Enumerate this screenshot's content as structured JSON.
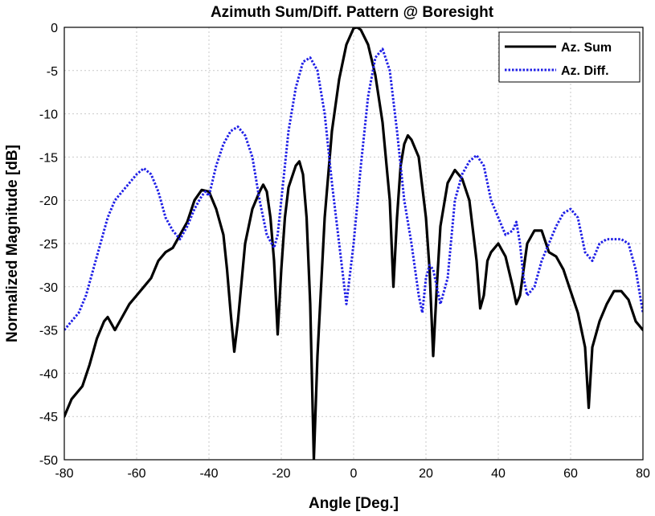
{
  "chart_data": {
    "type": "line",
    "title": "Azimuth Sum/Diff. Pattern @ Boresight",
    "xlabel": "Angle [Deg.]",
    "ylabel": "Normalized Magnitude [dB]",
    "xlim": [
      -80,
      80
    ],
    "ylim": [
      -50,
      0
    ],
    "xticks": [
      -80,
      -60,
      -40,
      -20,
      0,
      20,
      40,
      60,
      80
    ],
    "yticks": [
      0,
      -5,
      -10,
      -15,
      -20,
      -25,
      -30,
      -35,
      -40,
      -45,
      -50
    ],
    "grid": true,
    "legend": "top-right",
    "series": [
      {
        "name": "Az. Sum",
        "color": "#000000",
        "style": "solid",
        "x": [
          -80,
          -78,
          -75,
          -73,
          -71,
          -69,
          -68,
          -66,
          -64,
          -62,
          -60,
          -58,
          -56,
          -54,
          -52,
          -50,
          -48,
          -46,
          -44,
          -42,
          -40,
          -38,
          -36,
          -35,
          -34,
          -33,
          -32,
          -30,
          -28,
          -26,
          -25,
          -24,
          -23,
          -22,
          -21,
          -20,
          -19,
          -18,
          -16,
          -15,
          -14,
          -13,
          -12,
          -11,
          -10,
          -8,
          -6,
          -4,
          -2,
          0,
          1,
          2,
          4,
          6,
          8,
          10,
          11,
          12,
          13,
          14,
          15,
          16,
          18,
          20,
          21,
          22,
          23,
          24,
          26,
          28,
          30,
          32,
          34,
          35,
          36,
          37,
          38,
          40,
          42,
          44,
          45,
          46,
          47,
          48,
          50,
          52,
          54,
          56,
          58,
          60,
          62,
          64,
          65,
          66,
          68,
          70,
          72,
          74,
          76,
          78,
          80
        ],
        "values": [
          -45,
          -43,
          -41.5,
          -39,
          -36,
          -34,
          -33.5,
          -35,
          -33.5,
          -32,
          -31,
          -30,
          -29,
          -27,
          -26,
          -25.5,
          -24,
          -22.5,
          -20,
          -18.8,
          -19,
          -21,
          -24,
          -28,
          -33,
          -37.5,
          -34,
          -25,
          -21,
          -19,
          -18.2,
          -19,
          -22,
          -27,
          -35.5,
          -28,
          -22,
          -18.5,
          -16,
          -15.5,
          -17,
          -22,
          -32,
          -50,
          -38,
          -22,
          -12,
          -6,
          -2,
          -0.1,
          0,
          -0.3,
          -2,
          -5.5,
          -11,
          -20,
          -30,
          -22,
          -16,
          -13.5,
          -12.5,
          -13,
          -15,
          -22,
          -28,
          -38,
          -30,
          -23,
          -18,
          -16.5,
          -17.5,
          -20,
          -27,
          -32.5,
          -31,
          -27,
          -26,
          -25,
          -26.5,
          -30,
          -32,
          -31,
          -28,
          -25,
          -23.5,
          -23.5,
          -26,
          -26.5,
          -28,
          -30.5,
          -33,
          -37,
          -44,
          -37,
          -34,
          -32,
          -30.5,
          -30.5,
          -31.5,
          -34,
          -35
        ]
      },
      {
        "name": "Az. Diff.",
        "color": "#1f1fe6",
        "style": "dotted",
        "x": [
          -80,
          -78,
          -76,
          -74,
          -72,
          -70,
          -68,
          -66,
          -64,
          -62,
          -60,
          -58,
          -56,
          -54,
          -52,
          -50,
          -48,
          -46,
          -44,
          -42,
          -41,
          -40,
          -38,
          -36,
          -34,
          -32,
          -30,
          -28,
          -26,
          -24,
          -22,
          -21,
          -20,
          -18,
          -16,
          -14,
          -12,
          -10,
          -8,
          -6,
          -4,
          -2,
          0,
          2,
          4,
          6,
          8,
          10,
          12,
          14,
          16,
          18,
          19,
          20,
          21,
          22,
          24,
          26,
          28,
          30,
          32,
          34,
          36,
          38,
          40,
          42,
          44,
          45,
          46,
          47,
          48,
          50,
          52,
          54,
          56,
          58,
          60,
          62,
          64,
          66,
          68,
          70,
          72,
          74,
          76,
          78,
          80
        ],
        "values": [
          -35,
          -34,
          -33,
          -31,
          -28,
          -25,
          -22,
          -20,
          -19,
          -18,
          -17,
          -16.3,
          -17,
          -19,
          -22,
          -23.5,
          -24.5,
          -23,
          -21,
          -19.5,
          -19,
          -19.5,
          -16,
          -13.5,
          -12,
          -11.5,
          -12.5,
          -15,
          -20,
          -24,
          -25.5,
          -24,
          -20,
          -12,
          -7,
          -4,
          -3.5,
          -5,
          -10,
          -18,
          -25,
          -32,
          -25,
          -16,
          -8,
          -3.5,
          -2.5,
          -5,
          -12,
          -20,
          -25,
          -31,
          -33,
          -29,
          -27.5,
          -28,
          -32,
          -29,
          -20,
          -17,
          -15.5,
          -14.8,
          -16,
          -20,
          -22,
          -24,
          -23.5,
          -22.5,
          -25,
          -29,
          -31,
          -30,
          -27,
          -25,
          -23,
          -21.5,
          -21,
          -22,
          -26,
          -27,
          -25,
          -24.5,
          -24.5,
          -24.5,
          -25,
          -28,
          -33
        ]
      }
    ]
  }
}
